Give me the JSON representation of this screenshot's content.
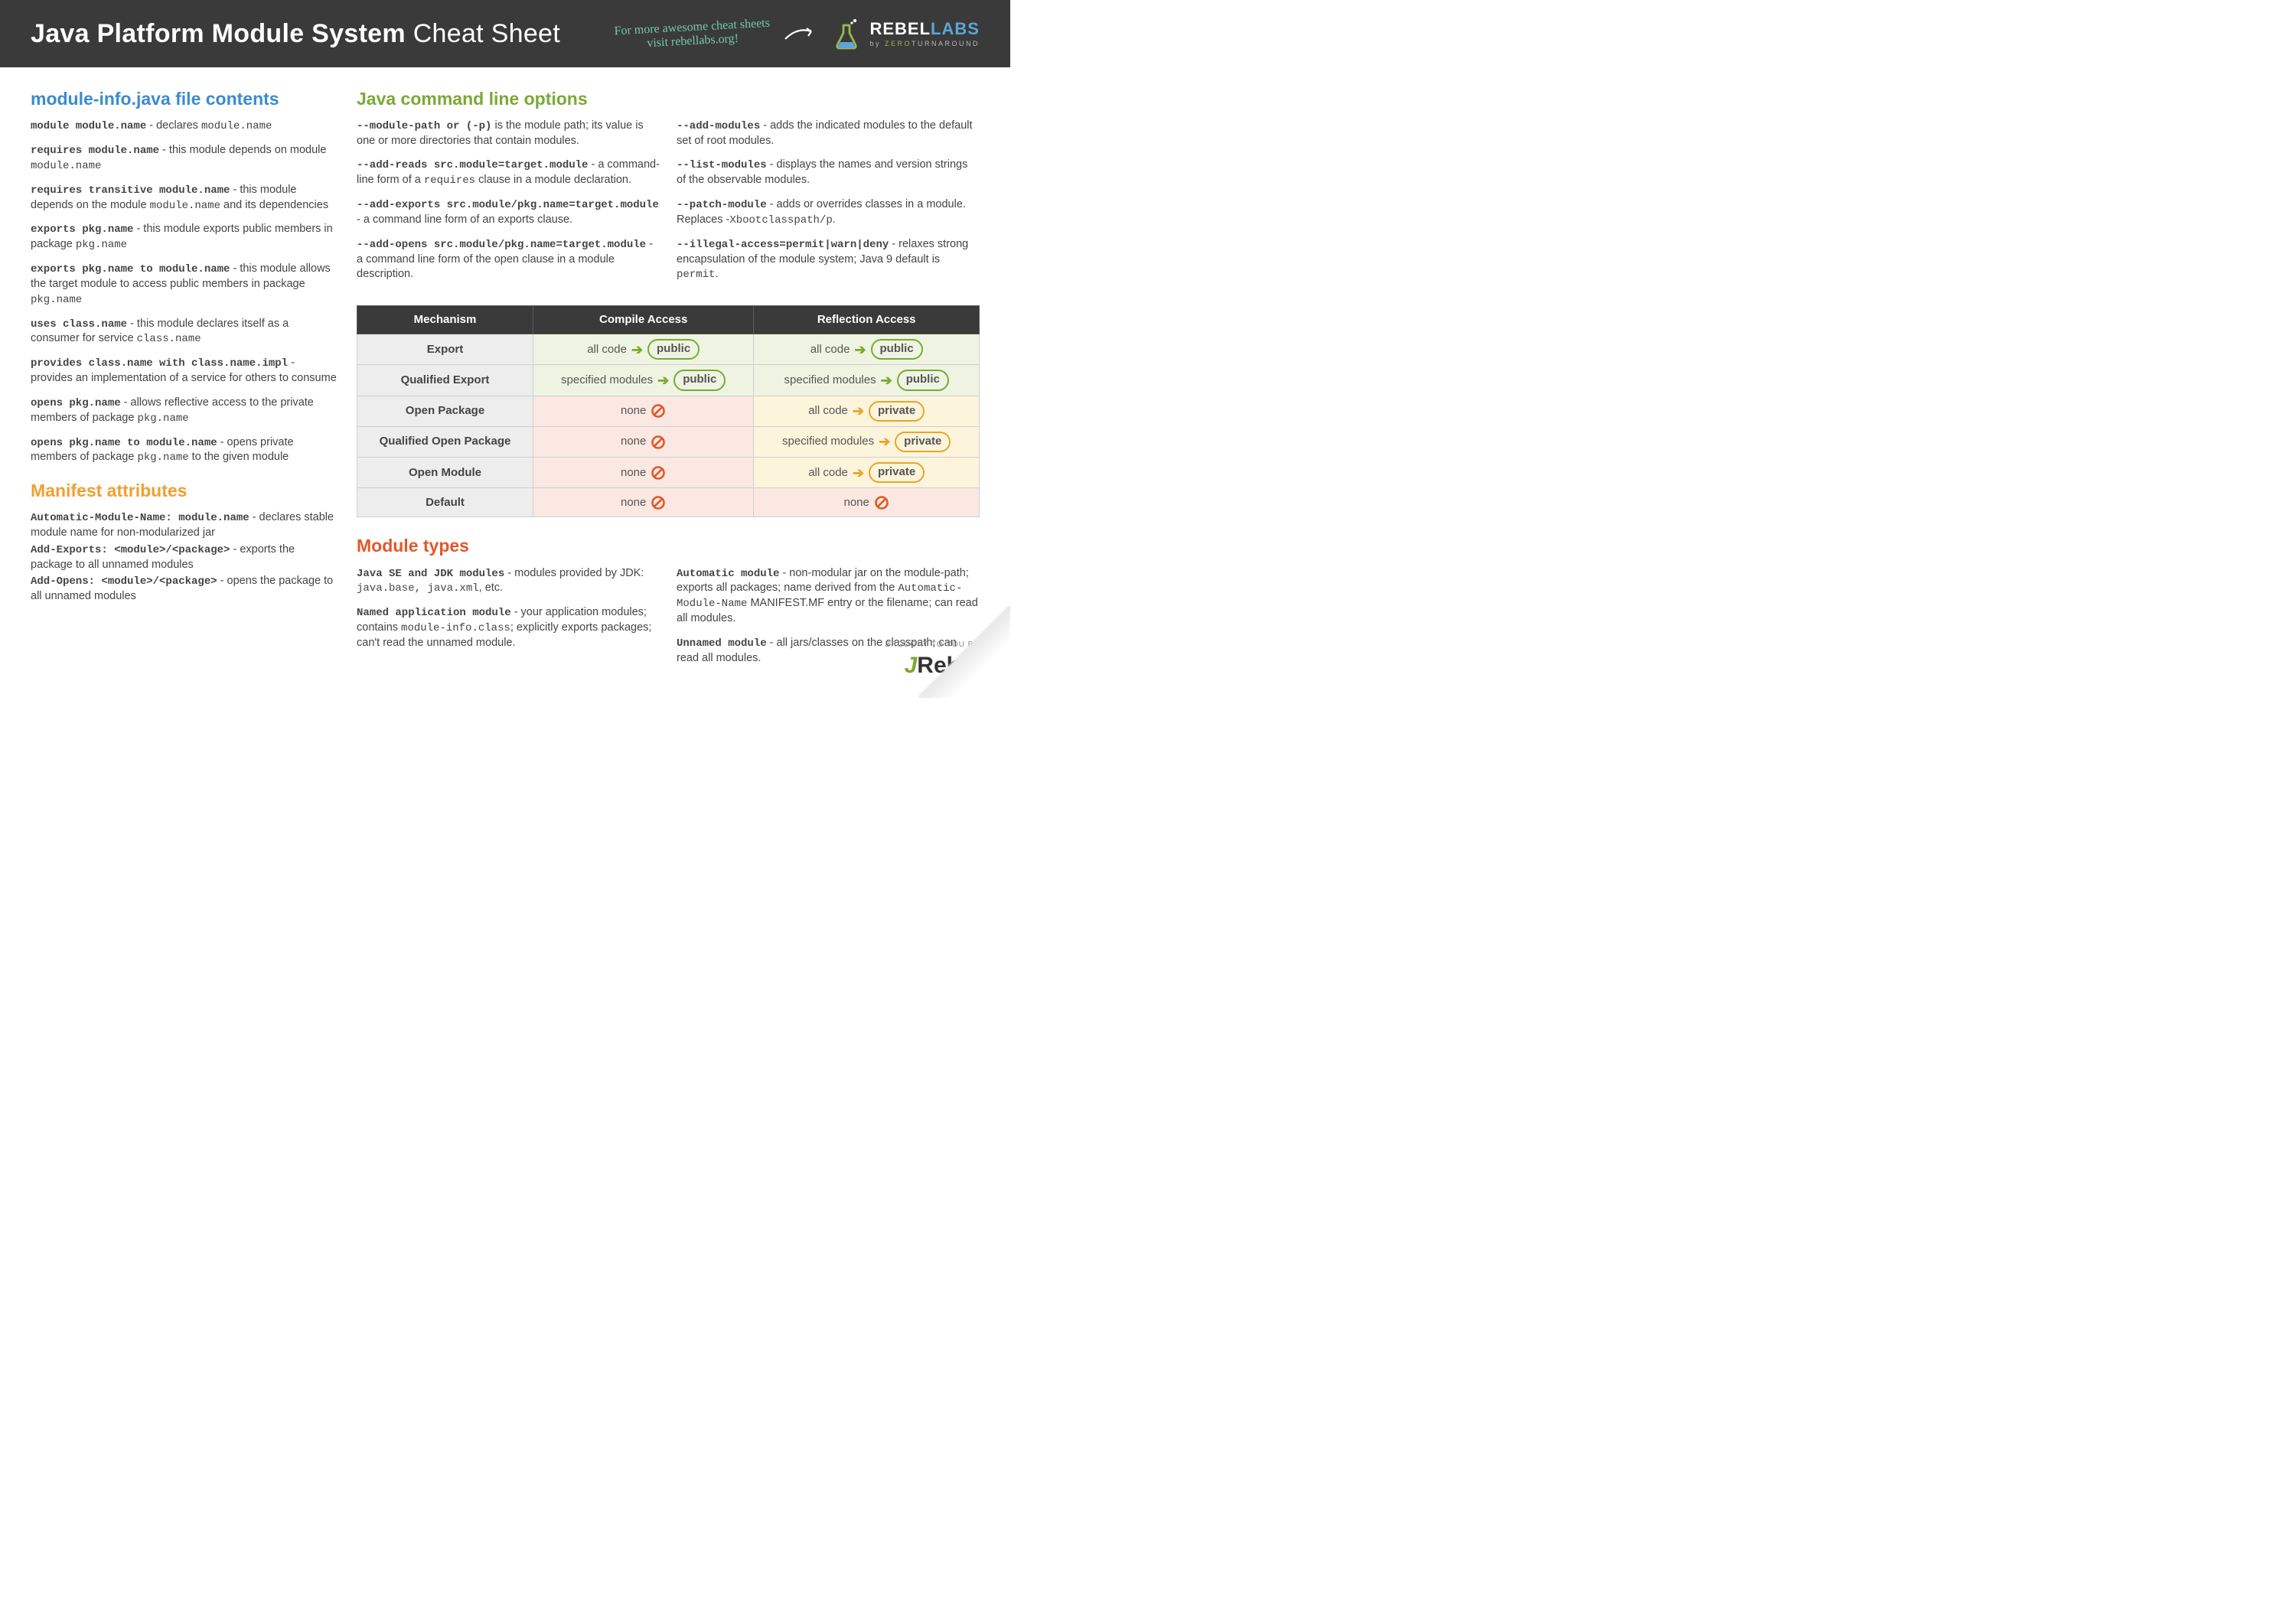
{
  "header": {
    "title_bold": "Java Platform Module System",
    "title_light": "Cheat Sheet",
    "note_line1": "For more awesome cheat sheets",
    "note_line2": "visit rebellabs.org!",
    "logo_main": "REBEL",
    "logo_accent": "LABS",
    "logo_sub_pre": "by ",
    "logo_sub_accent": "ZERO",
    "logo_sub_post": "TURNAROUND"
  },
  "sections": {
    "module_info": "module-info.java file contents",
    "manifest": "Manifest attributes",
    "cli": "Java command line options",
    "types": "Module types"
  },
  "module_info": [
    {
      "sig": "module module.name",
      "desc": " - declares ",
      "tail": "module.name"
    },
    {
      "sig": "requires module.name",
      "desc": " - this module depends on module ",
      "tail": "module.name"
    },
    {
      "sig": "requires transitive module.name",
      "desc": " - this module depends on the module ",
      "tail": "module.name",
      "post": " and its dependencies"
    },
    {
      "sig": "exports pkg.name",
      "desc": " - this module exports public members in package ",
      "tail": "pkg.name"
    },
    {
      "sig": "exports pkg.name to module.name",
      "desc": " - this module allows the target module to access public members in package ",
      "tail": "pkg.name"
    },
    {
      "sig": "uses class.name",
      "desc": " - this module declares itself as a consumer for service ",
      "tail": "class.name"
    },
    {
      "sig": "provides class.name with class.name.impl",
      "desc": " - provides an implementation of a service for others to consume"
    },
    {
      "sig": "opens pkg.name",
      "desc": " - allows reflective access to the private members of package ",
      "tail": "pkg.name"
    },
    {
      "sig": "opens pkg.name to module.name",
      "desc": " - opens private members of package ",
      "tail": "pkg.name",
      "post": " to the given module"
    }
  ],
  "manifest": [
    {
      "sig": "Automatic-Module-Name: module.name",
      "desc": " - declares stable module name for non-modularized jar"
    },
    {
      "sig": "Add-Exports: <module>/<package>",
      "desc": " - exports the package to all unnamed modules"
    },
    {
      "sig": "Add-Opens: <module>/<package>",
      "desc": " - opens the package to all unnamed modules"
    }
  ],
  "cli_left": [
    {
      "sig": "--module-path or (-p)",
      "desc": " is the module path; its value is one or more directories that contain modules."
    },
    {
      "sig": "--add-reads src.module=target.module",
      "desc": " - a command-line form of a ",
      "tail": "requires",
      "post": " clause in a module declaration."
    },
    {
      "sig": "--add-exports src.module/pkg.name=target.module",
      "desc": " - a command line form of an exports clause."
    },
    {
      "sig": "--add-opens src.module/pkg.name=target.module",
      "desc": " - a command line form of the open clause in a module description."
    }
  ],
  "cli_right": [
    {
      "sig": "--add-modules",
      "desc": " - adds the indicated modules to the default set of root modules."
    },
    {
      "sig": "--list-modules",
      "desc": " - displays the names and version strings of the observable modules."
    },
    {
      "sig": "--patch-module",
      "desc": " - adds or overrides classes in a module. Replaces -",
      "tail": "Xbootclasspath/p",
      "post": "."
    },
    {
      "sig": "--illegal-access=permit|warn|deny",
      "desc": " - relaxes strong encapsulation of the module system; Java 9 default is ",
      "tail": "permit",
      "post": "."
    }
  ],
  "table": {
    "headers": [
      "Mechanism",
      "Compile Access",
      "Reflection Access"
    ],
    "rows": [
      {
        "mech": "Export",
        "compile": {
          "kind": "pill",
          "lead": "all code",
          "tag": "public",
          "color": "green"
        },
        "reflect": {
          "kind": "pill",
          "lead": "all code",
          "tag": "public",
          "color": "green"
        },
        "bg": "green"
      },
      {
        "mech": "Qualified Export",
        "compile": {
          "kind": "pill",
          "lead": "specified modules",
          "tag": "public",
          "color": "green"
        },
        "reflect": {
          "kind": "pill",
          "lead": "specified modules",
          "tag": "public",
          "color": "green"
        },
        "bg": "green"
      },
      {
        "mech": "Open Package",
        "compile": {
          "kind": "none"
        },
        "reflect": {
          "kind": "pill",
          "lead": "all code",
          "tag": "private",
          "color": "yellow"
        },
        "bg": "mix1"
      },
      {
        "mech": "Qualified Open Package",
        "compile": {
          "kind": "none"
        },
        "reflect": {
          "kind": "pill",
          "lead": "specified modules",
          "tag": "private",
          "color": "yellow"
        },
        "bg": "mix1"
      },
      {
        "mech": "Open Module",
        "compile": {
          "kind": "none"
        },
        "reflect": {
          "kind": "pill",
          "lead": "all code",
          "tag": "private",
          "color": "yellow"
        },
        "bg": "mix1"
      },
      {
        "mech": "Default",
        "compile": {
          "kind": "none"
        },
        "reflect": {
          "kind": "none"
        },
        "bg": "red"
      }
    ],
    "none_label": "none"
  },
  "types_left": [
    {
      "sig": "Java SE and JDK modules",
      "desc": " - modules provided by JDK: ",
      "tail": "java.base, java.xml",
      "post": ", etc."
    },
    {
      "sig": "Named application module",
      "desc": " - your application modules; contains ",
      "tail": "module-info.class",
      "post": "; explicitly exports packages; can't read the unnamed module."
    }
  ],
  "types_right": [
    {
      "sig": "Automatic module",
      "desc": " - non-modular jar on the module-path; exports all packages; name derived from the ",
      "tail": "Automatic-Module-Name",
      "post": " MANIFEST.MF entry or the filename; can read all modules."
    },
    {
      "sig": "Unnamed module",
      "desc": " - all jars/classes on the classpath; can read all modules."
    }
  ],
  "footer": {
    "pre": "BROUGHT TO YOU BY",
    "brand_j": "J",
    "brand_rest": "Rebel"
  },
  "colors": {
    "header_bg": "#3a3a3a",
    "blue": "#3a8bd0",
    "green": "#7aa935",
    "orange": "#f0a030",
    "red": "#e2582b",
    "pill_green": "#7aa935",
    "pill_yellow": "#e5a62a",
    "row_green": "#eff4e2",
    "row_yellow": "#fdf4dc",
    "row_red": "#fbe8e2",
    "no_icon": "#e2582b"
  }
}
